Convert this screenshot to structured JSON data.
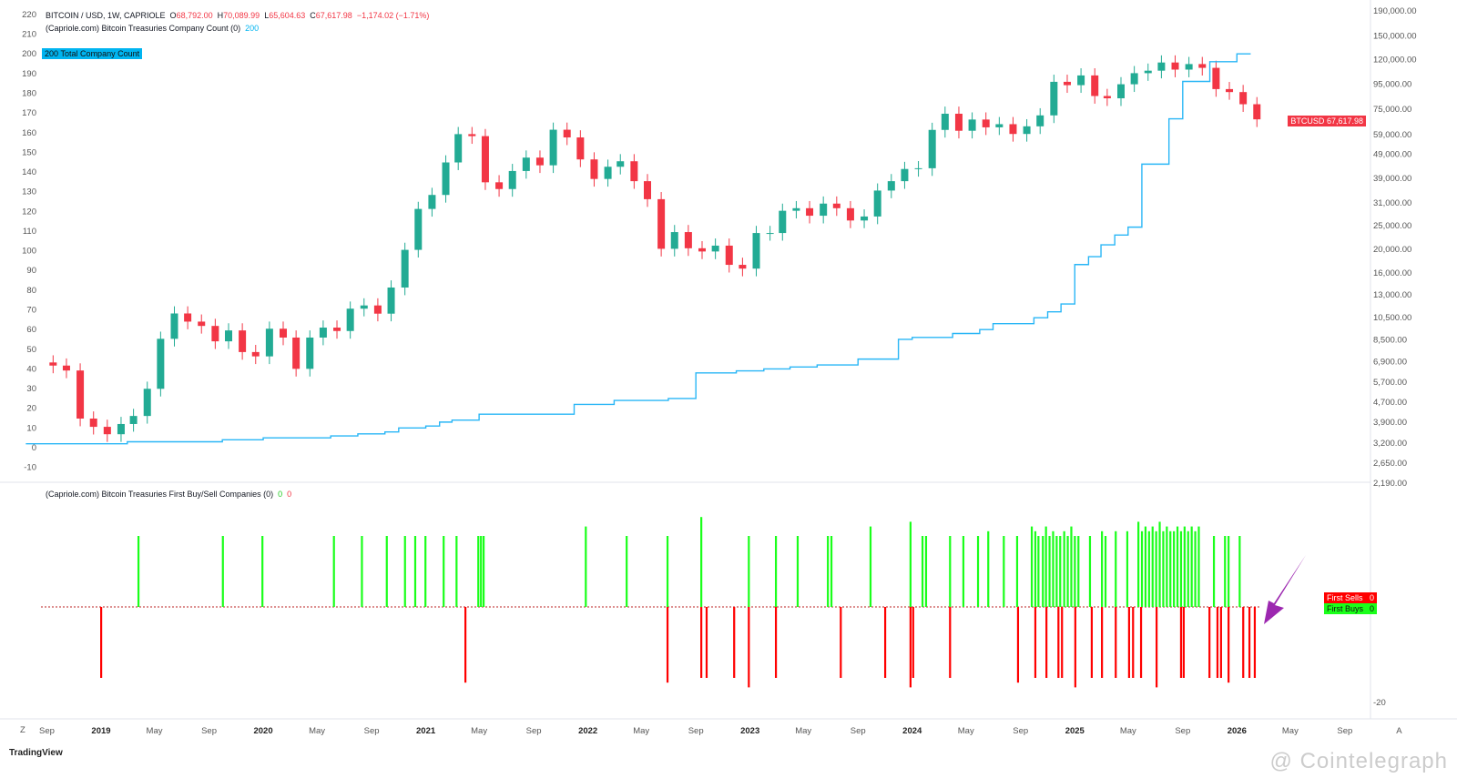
{
  "header": {
    "symbol": "BITCOIN / USD, 1W, CAPRIOLE",
    "open_label": "O",
    "open": "68,792.00",
    "high_label": "H",
    "high": "70,089.99",
    "low_label": "L",
    "low": "65,604.63",
    "close_label": "C",
    "close": "67,617.98",
    "change": "−1,174.02 (−1.71%)",
    "indicator1": "(Capriole.com) Bitcoin Treasuries Company Count (0)",
    "indicator1_value": "200",
    "indicator2": "(Capriole.com) Bitcoin Treasuries First Buy/Sell Companies (0)",
    "indicator2_buy": "0",
    "indicator2_sell": "0"
  },
  "tags": {
    "count_value": "200",
    "count_label": "Total Company Count",
    "price_symbol": "BTCUSD",
    "price_value": "67,617.98",
    "sells_label": "First Sells",
    "sells_value": "0",
    "buys_label": "First Buys",
    "buys_value": "0"
  },
  "colors": {
    "up": "#22ab94",
    "down": "#f23645",
    "count_line": "#29b6f6",
    "buy": "#1aff1a",
    "sell": "#ff0000",
    "arrow": "#9c27b0"
  },
  "footer": {
    "brand": "TradingView",
    "watermark": "@ Cointelegraph",
    "z_button": "Z"
  },
  "chart_data": [
    {
      "type": "candlestick",
      "series_name": "BTCUSD",
      "interval": "1W (approximated monthly closes)",
      "y_scale": "log",
      "ylim": [
        2190,
        190000
      ],
      "right_ticks": [
        "190,000.00",
        "150,000.00",
        "120,000.00",
        "95,000.00",
        "75,000.00",
        "59,000.00",
        "49,000.00",
        "39,000.00",
        "31,000.00",
        "25,000.00",
        "20,000.00",
        "16,000.00",
        "13,000.00",
        "10,500.00",
        "8,500.00",
        "6,900.00",
        "5,700.00",
        "4,700.00",
        "3,900.00",
        "3,200.00",
        "2,650.00",
        "2,190.00"
      ],
      "closes": [
        [
          "2018-09",
          6600
        ],
        [
          "2018-10",
          6300
        ],
        [
          "2018-11",
          4000
        ],
        [
          "2018-12",
          3700
        ],
        [
          "2019-01",
          3450
        ],
        [
          "2019-02",
          3800
        ],
        [
          "2019-03",
          4100
        ],
        [
          "2019-04",
          5300
        ],
        [
          "2019-05",
          8500
        ],
        [
          "2019-06",
          10800
        ],
        [
          "2019-07",
          10000
        ],
        [
          "2019-08",
          9600
        ],
        [
          "2019-09",
          8300
        ],
        [
          "2019-10",
          9200
        ],
        [
          "2019-11",
          7500
        ],
        [
          "2019-12",
          7200
        ],
        [
          "2020-01",
          9350
        ],
        [
          "2020-02",
          8600
        ],
        [
          "2020-03",
          6400
        ],
        [
          "2020-04",
          8600
        ],
        [
          "2020-05",
          9450
        ],
        [
          "2020-06",
          9150
        ],
        [
          "2020-07",
          11300
        ],
        [
          "2020-08",
          11650
        ],
        [
          "2020-09",
          10780
        ],
        [
          "2020-10",
          13800
        ],
        [
          "2020-11",
          19700
        ],
        [
          "2020-12",
          29000
        ],
        [
          "2021-01",
          33100
        ],
        [
          "2021-02",
          45000
        ],
        [
          "2021-03",
          58800
        ],
        [
          "2021-04",
          57700
        ],
        [
          "2021-05",
          37300
        ],
        [
          "2021-06",
          35000
        ],
        [
          "2021-07",
          41500
        ],
        [
          "2021-08",
          47100
        ],
        [
          "2021-09",
          43800
        ],
        [
          "2021-10",
          61300
        ],
        [
          "2021-11",
          57000
        ],
        [
          "2021-12",
          46300
        ],
        [
          "2022-01",
          38500
        ],
        [
          "2022-02",
          43200
        ],
        [
          "2022-03",
          45500
        ],
        [
          "2022-04",
          37700
        ],
        [
          "2022-05",
          31800
        ],
        [
          "2022-06",
          19900
        ],
        [
          "2022-07",
          23300
        ],
        [
          "2022-08",
          20000
        ],
        [
          "2022-09",
          19400
        ],
        [
          "2022-10",
          20500
        ],
        [
          "2022-11",
          17100
        ],
        [
          "2022-12",
          16500
        ],
        [
          "2023-01",
          23100
        ],
        [
          "2023-02",
          23100
        ],
        [
          "2023-03",
          28500
        ],
        [
          "2023-04",
          29200
        ],
        [
          "2023-05",
          27200
        ],
        [
          "2023-06",
          30500
        ],
        [
          "2023-07",
          29200
        ],
        [
          "2023-08",
          26000
        ],
        [
          "2023-09",
          27000
        ],
        [
          "2023-10",
          34500
        ],
        [
          "2023-11",
          37700
        ],
        [
          "2023-12",
          42300
        ],
        [
          "2024-01",
          42600
        ],
        [
          "2024-02",
          61200
        ],
        [
          "2024-03",
          71300
        ],
        [
          "2024-04",
          60700
        ],
        [
          "2024-05",
          67500
        ],
        [
          "2024-06",
          62700
        ],
        [
          "2024-07",
          64600
        ],
        [
          "2024-08",
          58900
        ],
        [
          "2024-09",
          63300
        ],
        [
          "2024-10",
          70200
        ],
        [
          "2024-11",
          96400
        ],
        [
          "2024-12",
          93400
        ],
        [
          "2025-01",
          102400
        ],
        [
          "2025-02",
          84300
        ],
        [
          "2025-03",
          82500
        ],
        [
          "2025-04",
          94200
        ],
        [
          "2025-05",
          104600
        ],
        [
          "2025-06",
          107100
        ],
        [
          "2025-07",
          115700
        ],
        [
          "2025-08",
          108200
        ],
        [
          "2025-09",
          114000
        ],
        [
          "2025-10",
          110000
        ],
        [
          "2025-11",
          90000
        ],
        [
          "2025-12",
          87500
        ],
        [
          "2026-01",
          78000
        ],
        [
          "2026-02",
          67617.98
        ]
      ]
    },
    {
      "type": "line",
      "series_name": "Total Company Count",
      "ylim": [
        -10,
        220
      ],
      "left_ticks": [
        220,
        210,
        200,
        190,
        180,
        170,
        160,
        150,
        140,
        130,
        120,
        110,
        100,
        90,
        80,
        70,
        60,
        50,
        40,
        30,
        20,
        10,
        0,
        -10
      ],
      "step_points": [
        [
          "2018-08",
          2
        ],
        [
          "2019-03",
          3
        ],
        [
          "2019-10",
          4
        ],
        [
          "2020-01",
          5
        ],
        [
          "2020-06",
          6
        ],
        [
          "2020-08",
          7
        ],
        [
          "2020-10",
          8
        ],
        [
          "2020-11",
          10
        ],
        [
          "2021-01",
          11
        ],
        [
          "2021-02",
          13
        ],
        [
          "2021-03",
          14
        ],
        [
          "2021-05",
          17
        ],
        [
          "2021-12",
          22
        ],
        [
          "2022-03",
          24
        ],
        [
          "2022-07",
          25
        ],
        [
          "2022-09",
          38
        ],
        [
          "2022-12",
          39
        ],
        [
          "2023-02",
          40
        ],
        [
          "2023-04",
          41
        ],
        [
          "2023-06",
          42
        ],
        [
          "2023-09",
          45
        ],
        [
          "2023-12",
          55
        ],
        [
          "2024-01",
          56
        ],
        [
          "2024-04",
          58
        ],
        [
          "2024-06",
          60
        ],
        [
          "2024-07",
          63
        ],
        [
          "2024-10",
          66
        ],
        [
          "2024-11",
          69
        ],
        [
          "2024-12",
          73
        ],
        [
          "2025-01",
          93
        ],
        [
          "2025-02",
          97
        ],
        [
          "2025-03",
          103
        ],
        [
          "2025-04",
          108
        ],
        [
          "2025-05",
          112
        ],
        [
          "2025-06",
          144
        ],
        [
          "2025-08",
          167
        ],
        [
          "2025-09",
          186
        ],
        [
          "2025-11",
          196
        ],
        [
          "2026-01",
          200
        ],
        [
          "2026-02",
          200
        ]
      ]
    },
    {
      "type": "bar",
      "series": [
        {
          "name": "First Buys",
          "points": [
            [
              "2019-03-26",
              15
            ],
            [
              "2019-10-02",
              15
            ],
            [
              "2019-12-30",
              15
            ],
            [
              "2020-06-08",
              15
            ],
            [
              "2020-08-10",
              15
            ],
            [
              "2020-10-05",
              15
            ],
            [
              "2020-11-15",
              15
            ],
            [
              "2020-12-08",
              15
            ],
            [
              "2020-12-31",
              15
            ],
            [
              "2021-02-10",
              15
            ],
            [
              "2021-03-11",
              15
            ],
            [
              "2021-04-29",
              15
            ],
            [
              "2021-05-05",
              15
            ],
            [
              "2021-05-11",
              15
            ],
            [
              "2021-12-27",
              17
            ],
            [
              "2022-03-29",
              15
            ],
            [
              "2022-06-29",
              15
            ],
            [
              "2022-09-13",
              19
            ],
            [
              "2022-12-29",
              15
            ],
            [
              "2023-02-28",
              15
            ],
            [
              "2023-04-18",
              15
            ],
            [
              "2023-06-25",
              15
            ],
            [
              "2023-07-03",
              15
            ],
            [
              "2023-09-29",
              17
            ],
            [
              "2023-12-28",
              18
            ],
            [
              "2024-01-24",
              15
            ],
            [
              "2024-02-01",
              15
            ],
            [
              "2024-03-26",
              15
            ],
            [
              "2024-04-25",
              15
            ],
            [
              "2024-05-28",
              15
            ],
            [
              "2024-06-20",
              16
            ],
            [
              "2024-07-25",
              15
            ],
            [
              "2024-08-24",
              15
            ],
            [
              "2024-09-26",
              17
            ],
            [
              "2024-10-04",
              16
            ],
            [
              "2024-10-11",
              15
            ],
            [
              "2024-10-21",
              15
            ],
            [
              "2024-10-28",
              17
            ],
            [
              "2024-11-05",
              15
            ],
            [
              "2024-11-13",
              16
            ],
            [
              "2024-11-21",
              15
            ],
            [
              "2024-11-29",
              15
            ],
            [
              "2024-12-08",
              16
            ],
            [
              "2024-12-16",
              15
            ],
            [
              "2024-12-24",
              17
            ],
            [
              "2025-01-01",
              15
            ],
            [
              "2025-01-09",
              15
            ],
            [
              "2025-02-04",
              15
            ],
            [
              "2025-03-03",
              16
            ],
            [
              "2025-03-11",
              15
            ],
            [
              "2025-04-03",
              16
            ],
            [
              "2025-04-29",
              16
            ],
            [
              "2025-05-24",
              18
            ],
            [
              "2025-06-01",
              16
            ],
            [
              "2025-06-09",
              17
            ],
            [
              "2025-06-17",
              16
            ],
            [
              "2025-06-25",
              17
            ],
            [
              "2025-07-03",
              16
            ],
            [
              "2025-07-11",
              18
            ],
            [
              "2025-07-19",
              16
            ],
            [
              "2025-07-27",
              17
            ],
            [
              "2025-08-04",
              16
            ],
            [
              "2025-08-12",
              16
            ],
            [
              "2025-08-20",
              17
            ],
            [
              "2025-08-28",
              16
            ],
            [
              "2025-09-05",
              17
            ],
            [
              "2025-09-13",
              16
            ],
            [
              "2025-09-21",
              17
            ],
            [
              "2025-09-29",
              16
            ],
            [
              "2025-10-07",
              17
            ],
            [
              "2025-11-10",
              15
            ],
            [
              "2025-12-05",
              15
            ],
            [
              "2025-12-13",
              15
            ],
            [
              "2026-01-07",
              15
            ]
          ]
        },
        {
          "name": "First Sells",
          "points": [
            [
              "2019-01-01",
              -15
            ],
            [
              "2021-03-31",
              -16
            ],
            [
              "2022-06-29",
              -16
            ],
            [
              "2022-09-13",
              -15
            ],
            [
              "2022-09-25",
              -15
            ],
            [
              "2022-11-26",
              -15
            ],
            [
              "2022-12-29",
              -17
            ],
            [
              "2023-02-28",
              -15
            ],
            [
              "2023-07-24",
              -15
            ],
            [
              "2023-11-01",
              -15
            ],
            [
              "2023-12-28",
              -17
            ],
            [
              "2024-01-03",
              -15
            ],
            [
              "2024-03-26",
              -15
            ],
            [
              "2024-08-26",
              -16
            ],
            [
              "2024-10-04",
              -15
            ],
            [
              "2024-10-29",
              -15
            ],
            [
              "2024-11-25",
              -15
            ],
            [
              "2024-12-03",
              -15
            ],
            [
              "2025-01-02",
              -17
            ],
            [
              "2025-02-08",
              -15
            ],
            [
              "2025-03-03",
              -15
            ],
            [
              "2025-04-03",
              -15
            ],
            [
              "2025-05-03",
              -15
            ],
            [
              "2025-05-12",
              -15
            ],
            [
              "2025-05-30",
              -15
            ],
            [
              "2025-07-04",
              -17
            ],
            [
              "2025-08-28",
              -15
            ],
            [
              "2025-09-03",
              -15
            ],
            [
              "2025-10-31",
              -15
            ],
            [
              "2025-11-18",
              -15
            ],
            [
              "2025-11-26",
              -15
            ],
            [
              "2025-12-13",
              -16
            ],
            [
              "2026-01-15",
              -15
            ],
            [
              "2026-01-29",
              -15
            ],
            [
              "2026-02-10",
              -15
            ]
          ]
        }
      ],
      "right_ticks": [
        "-20"
      ]
    }
  ],
  "x_axis": {
    "labels": [
      [
        "Sep",
        "2018-09-01"
      ],
      [
        "2019",
        "2019-01-01"
      ],
      [
        "May",
        "2019-05-01"
      ],
      [
        "Sep",
        "2019-09-01"
      ],
      [
        "2020",
        "2020-01-01"
      ],
      [
        "May",
        "2020-05-01"
      ],
      [
        "Sep",
        "2020-09-01"
      ],
      [
        "2021",
        "2021-01-01"
      ],
      [
        "May",
        "2021-05-01"
      ],
      [
        "Sep",
        "2021-09-01"
      ],
      [
        "2022",
        "2022-01-01"
      ],
      [
        "May",
        "2022-05-01"
      ],
      [
        "Sep",
        "2022-09-01"
      ],
      [
        "2023",
        "2023-01-01"
      ],
      [
        "May",
        "2023-05-01"
      ],
      [
        "Sep",
        "2023-09-01"
      ],
      [
        "2024",
        "2024-01-01"
      ],
      [
        "May",
        "2024-05-01"
      ],
      [
        "Sep",
        "2024-09-01"
      ],
      [
        "2025",
        "2025-01-01"
      ],
      [
        "May",
        "2025-05-01"
      ],
      [
        "Sep",
        "2025-09-01"
      ],
      [
        "2026",
        "2026-01-01"
      ],
      [
        "May",
        "2026-05-01"
      ],
      [
        "Sep",
        "2026-09-01"
      ],
      [
        "A",
        "2027-01-01"
      ]
    ]
  }
}
